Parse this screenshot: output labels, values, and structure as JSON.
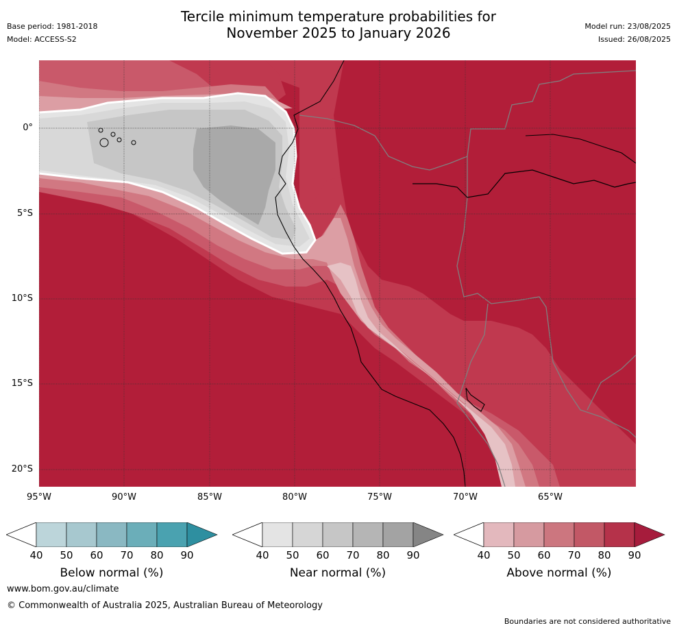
{
  "header": {
    "title_line1": "Tercile minimum temperature probabilities for",
    "title_line2": "November 2025 to January 2026",
    "base_period": "Base period: 1981-2018",
    "model": "Model: ACCESS-S2",
    "model_run": "Model run: 23/08/2025",
    "issued": "Issued: 26/08/2025"
  },
  "map": {
    "lat_labels": [
      "0°",
      "5°S",
      "10°S",
      "15°S",
      "20°S"
    ],
    "lon_labels": [
      "95°W",
      "90°W",
      "85°W",
      "80°W",
      "75°W",
      "70°W",
      "65°W"
    ],
    "colors": {
      "above_90": "#b21e39",
      "above_80": "#c0394f",
      "above_70": "#c9596a",
      "above_60": "#d17882",
      "above_50": "#dc9ea4",
      "above_40": "#e6c2c5",
      "near_40": "#e4e4e4",
      "near_50": "#d8d8d8",
      "near_60": "#c6c6c6",
      "near_70": "#a9a9a9"
    }
  },
  "colorbars": [
    {
      "label": "Below normal (%)",
      "ticks": [
        "40",
        "50",
        "60",
        "70",
        "80",
        "90"
      ],
      "colors": [
        "#bcd5da",
        "#a7c8cf",
        "#8ab8c2",
        "#6baeb9",
        "#4aa2b0",
        "#2e8fa0"
      ]
    },
    {
      "label": "Near normal (%)",
      "ticks": [
        "40",
        "50",
        "60",
        "70",
        "80",
        "90"
      ],
      "colors": [
        "#e4e4e4",
        "#d6d6d6",
        "#c6c6c6",
        "#b5b5b5",
        "#a3a3a3",
        "#858585"
      ]
    },
    {
      "label": "Above normal (%)",
      "ticks": [
        "40",
        "50",
        "60",
        "70",
        "80",
        "90"
      ],
      "colors": [
        "#e3b8bd",
        "#d69aa0",
        "#cc767f",
        "#c25866",
        "#b5324a",
        "#a61c3c"
      ]
    }
  ],
  "footer": {
    "website": "www.bom.gov.au/climate",
    "copyright": "© Commonwealth of Australia 2025, Australian Bureau of Meteorology",
    "disclaimer": "Boundaries are not considered authoritative"
  }
}
